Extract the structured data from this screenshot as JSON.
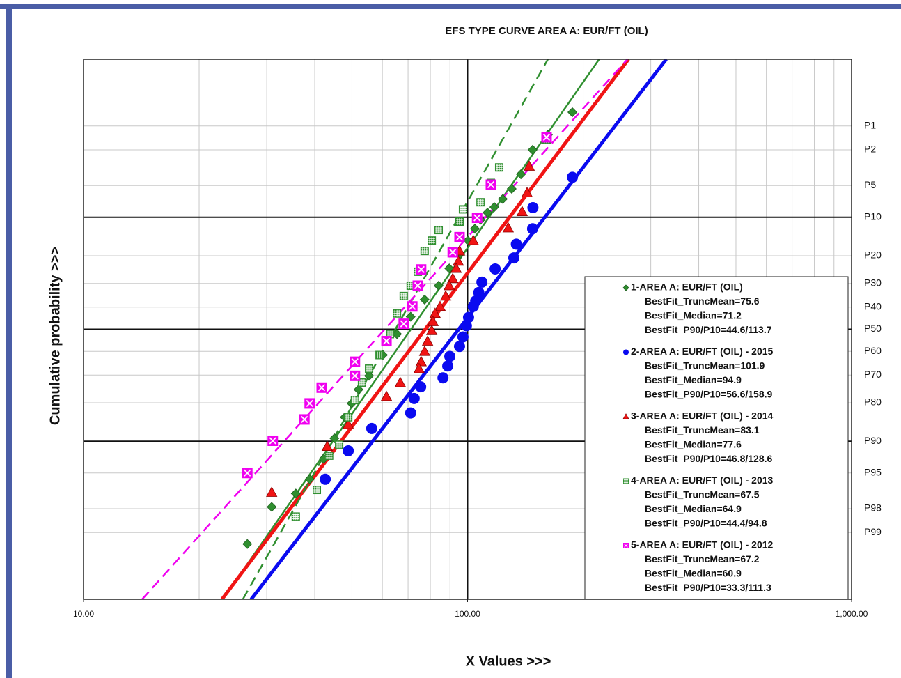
{
  "chart_data": {
    "type": "scatter",
    "title": "EFS TYPE CURVE AREA A: EUR/FT (OIL)",
    "x_label": "X Values >>>",
    "y_label": "Cumulative probability >>>",
    "xscale": "log",
    "yscale": "probability",
    "xlim": [
      10,
      1000
    ],
    "ylim": [
      0.1,
      99.9
    ],
    "xticks": [
      {
        "value": 10,
        "label": "10.00"
      },
      {
        "value": 100,
        "label": "100.00"
      },
      {
        "value": 1000,
        "label": "1,000.00"
      }
    ],
    "xgrid": [
      20,
      30,
      40,
      50,
      60,
      70,
      80,
      90,
      200,
      300,
      400,
      500,
      600,
      700,
      800,
      900
    ],
    "xgrid_major": [
      100
    ],
    "yticks": [
      {
        "value": 1,
        "label": "P1"
      },
      {
        "value": 2,
        "label": "P2"
      },
      {
        "value": 5,
        "label": "P5"
      },
      {
        "value": 10,
        "label": "P10"
      },
      {
        "value": 20,
        "label": "P20"
      },
      {
        "value": 30,
        "label": "P30"
      },
      {
        "value": 40,
        "label": "P40"
      },
      {
        "value": 50,
        "label": "P50"
      },
      {
        "value": 60,
        "label": "P60"
      },
      {
        "value": 70,
        "label": "P70"
      },
      {
        "value": 80,
        "label": "P80"
      },
      {
        "value": 90,
        "label": "P90"
      },
      {
        "value": 95,
        "label": "P95"
      },
      {
        "value": 98,
        "label": "P98"
      },
      {
        "value": 99,
        "label": "P99"
      }
    ],
    "ygrid_major": [
      10,
      50,
      90
    ],
    "grid": true,
    "legend": "lower right",
    "series": [
      {
        "name": "1-AREA A: EUR/FT (OIL)",
        "color": "#2f8f2f",
        "marker": "diamond",
        "line_style": "solid",
        "line_width": 2.5,
        "legend_lines": [
          "BestFit_TruncMean=75.6",
          "BestFit_Median=71.2",
          "BestFit_P90/P10=44.6/113.7"
        ],
        "fit_p90": 44.6,
        "fit_p10": 113.7,
        "x": [
          187.5,
          161.9,
          147.7,
          137.7,
          130.3,
          123.5,
          117.4,
          112.7,
          108.1,
          104.5,
          100.2,
          95.3,
          89.6,
          84.1,
          77.3,
          71.1,
          65.5,
          60.2,
          55.4,
          52.0,
          49.9,
          47.9,
          45.0,
          42.2,
          38.8,
          35.7,
          30.9,
          26.7
        ],
        "values": [
          0.65,
          1.3,
          2.0,
          3.8,
          5.4,
          6.8,
          8.1,
          9.1,
          10.5,
          12.5,
          15.5,
          19.6,
          24.3,
          30.9,
          36.7,
          44.3,
          52.2,
          61.6,
          70.3,
          75.5,
          80.2,
          84.3,
          89.4,
          93.1,
          95.7,
          97.0,
          97.9,
          99.3
        ]
      },
      {
        "name": "2-AREA A: EUR/FT (OIL) - 2015",
        "color": "#0a0af0",
        "marker": "circle",
        "line_style": "solid",
        "line_width": 5,
        "legend_lines": [
          "BestFit_TruncMean=101.9",
          "BestFit_Median=94.9",
          "BestFit_P90/P10=56.6/158.9"
        ],
        "fit_p90": 56.6,
        "fit_p10": 158.9,
        "x": [
          187.5,
          148.0,
          147.7,
          134.0,
          132.0,
          118.0,
          109.0,
          107.0,
          105.0,
          103.5,
          100.6,
          99.3,
          97.3,
          95.3,
          89.9,
          88.8,
          86.3,
          75.5,
          72.6,
          71.1,
          56.3,
          48.9,
          42.6
        ],
        "values": [
          4.1,
          8.2,
          12.5,
          16.5,
          20.7,
          24.5,
          29.5,
          33.7,
          37.3,
          39.7,
          44.6,
          48.4,
          53.5,
          57.8,
          62.2,
          66.3,
          71.1,
          74.5,
          78.6,
          83.1,
          87.2,
          91.8,
          95.7
        ]
      },
      {
        "name": "3-AREA A: EUR/FT (OIL) - 2014",
        "color": "#f01414",
        "marker": "triangle",
        "line_style": "solid",
        "line_width": 5,
        "legend_lines": [
          "BestFit_TruncMean=83.1",
          "BestFit_Median=77.6",
          "BestFit_P90/P10=46.8/128.6"
        ],
        "fit_p90": 46.8,
        "fit_p10": 128.6,
        "x": [
          144.7,
          142.9,
          138.7,
          127.6,
          103.5,
          95.3,
          94.6,
          93.4,
          91.5,
          89.6,
          87.7,
          84.8,
          82.3,
          81.3,
          80.7,
          78.7,
          77.3,
          75.7,
          74.8,
          66.8,
          61.5,
          48.9,
          43.1,
          30.9
        ],
        "values": [
          3.1,
          5.9,
          8.9,
          12.3,
          15.5,
          18.5,
          21.8,
          24.3,
          28.1,
          30.9,
          35.2,
          39.7,
          42.8,
          46.5,
          50.6,
          55.4,
          60.0,
          64.5,
          67.4,
          72.9,
          77.9,
          86.2,
          91.0,
          96.9
        ]
      },
      {
        "name": "4-AREA A: EUR/FT (OIL) - 2013",
        "color": "#2f8f2f",
        "marker": "square",
        "line_style": "dashed",
        "line_width": 2.5,
        "legend_lines": [
          "BestFit_TruncMean=67.5",
          "BestFit_Median=64.9",
          "BestFit_P90/P10=44.4/94.8"
        ],
        "fit_p90": 44.4,
        "fit_p10": 94.8,
        "x": [
          160.6,
          120.9,
          115.0,
          108.1,
          97.3,
          95.3,
          84.1,
          80.7,
          77.3,
          74.2,
          71.1,
          68.2,
          65.5,
          62.8,
          59.0,
          55.4,
          53.1,
          50.9,
          48.9,
          46.3,
          43.6,
          40.5,
          35.7
        ],
        "values": [
          1.5,
          3.2,
          4.7,
          7.3,
          8.5,
          10.9,
          12.8,
          15.5,
          18.5,
          25.5,
          30.9,
          35.2,
          42.8,
          52.2,
          61.6,
          67.4,
          72.9,
          79.1,
          84.3,
          90.7,
          92.6,
          96.7,
          98.4
        ]
      },
      {
        "name": "5-AREA A: EUR/FT (OIL) - 2012",
        "color": "#f000f0",
        "marker": "x-square",
        "line_style": "dashed",
        "line_width": 2.5,
        "legend_lines": [
          "BestFit_TruncMean=67.2",
          "BestFit_Median=60.9",
          "BestFit_P90/P10=33.3/111.3"
        ],
        "fit_p90": 33.3,
        "fit_p10": 111.3,
        "x": [
          160.6,
          115.0,
          105.9,
          95.3,
          91.5,
          75.7,
          74.2,
          71.8,
          68.2,
          61.5,
          50.9,
          50.9,
          41.7,
          38.8,
          37.6,
          31.1,
          26.7
        ],
        "values": [
          1.4,
          4.9,
          10.1,
          14.6,
          18.9,
          24.7,
          30.9,
          39.7,
          47.5,
          55.4,
          64.5,
          70.3,
          74.8,
          80.2,
          84.9,
          89.9,
          95.0
        ]
      }
    ]
  }
}
